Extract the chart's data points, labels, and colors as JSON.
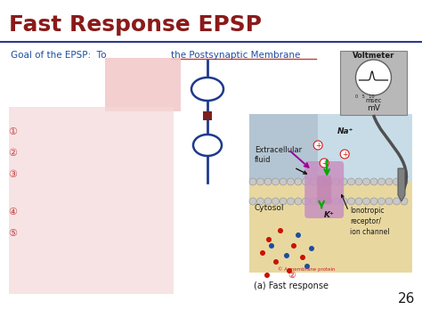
{
  "title": "Fast Response EPSP",
  "title_color": "#8B1A1A",
  "title_fontsize": 18,
  "bg_color": "#FFFFFF",
  "separator_color": "#2B3A8B",
  "slide_number": "26",
  "goal_text_blue": "Goal of the EPSP:  To",
  "goal_text_blue2": "the Postsynaptic Membrane",
  "goal_color": "#1E4DA1",
  "underline_color": "#C04040",
  "blurred_box1_color": "#F2CACA",
  "blurred_box2_color": "#F5D8D8",
  "blurred_items_color": "#C04040",
  "caption_text": "(a) Fast response",
  "diagram_bg_extracellular": "#C8DCE8",
  "diagram_bg_cytosol": "#E8D8A0",
  "membrane_color": "#C8C8C8",
  "receptor_color": "#C890C0",
  "na_color": "#1E90FF",
  "k_color": "#1E90FF",
  "arrow_green": "#00AA00",
  "arrow_purple": "#990099",
  "arrow_black": "#111111",
  "voltmeter_color": "#A0A0A0",
  "synapse_color": "#1E3A8B",
  "synapse_fill": "#FFFFFF",
  "vesicle_fill": "#FFFFFF"
}
